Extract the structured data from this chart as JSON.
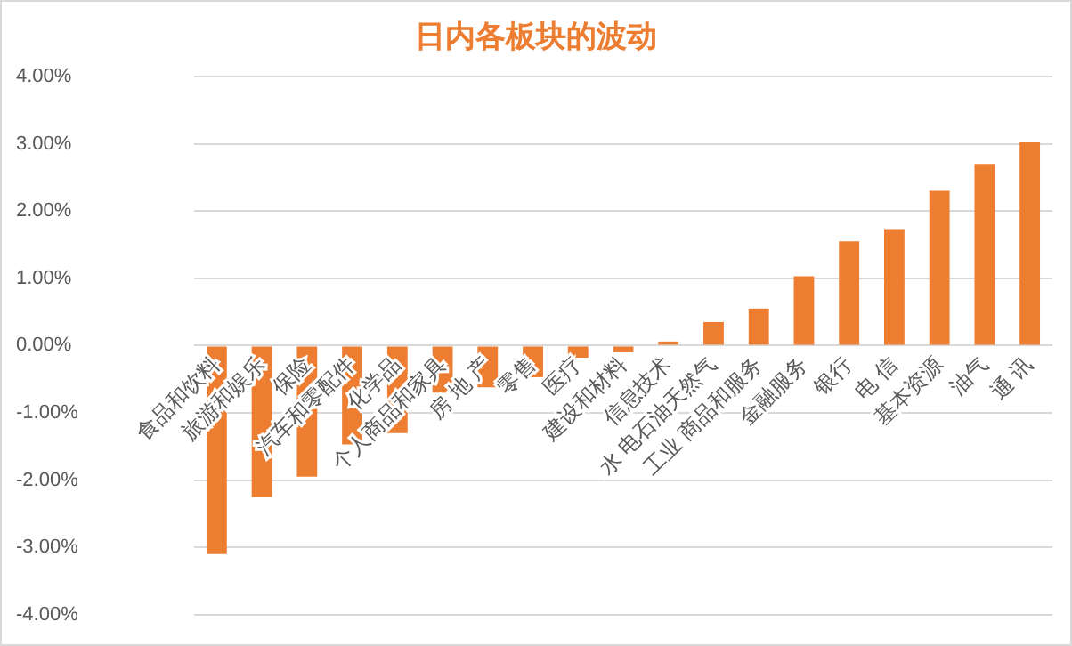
{
  "chart_data": {
    "type": "bar",
    "title": "日内各板块的波动",
    "categories": [
      "食品和饮料",
      "旅游和娱乐",
      "保险",
      "汽车和零配件",
      "化学品",
      "个人商品和家具",
      "房 地 产",
      "零售",
      "医疗",
      "建设和材料",
      "信息技术",
      "水 电石油天然气",
      "工业 商品和服务",
      "金融服务",
      "银行",
      "电 信",
      "基本资源",
      "油气",
      "通 讯"
    ],
    "values": [
      -3.1,
      -2.25,
      -1.95,
      -1.47,
      -1.3,
      -0.7,
      -0.62,
      -0.47,
      -0.18,
      -0.1,
      0.06,
      0.35,
      0.55,
      1.03,
      1.55,
      1.73,
      2.3,
      2.7,
      3.02
    ],
    "color": "#ed7d31",
    "ylim": [
      -4,
      4
    ],
    "yticks": [
      {
        "value": -4,
        "label": "-4.00%"
      },
      {
        "value": -3,
        "label": "-3.00%"
      },
      {
        "value": -2,
        "label": "-2.00%"
      },
      {
        "value": -1,
        "label": "-1.00%"
      },
      {
        "value": 0,
        "label": "0.00%"
      },
      {
        "value": 1,
        "label": "1.00%"
      },
      {
        "value": 2,
        "label": "2.00%"
      },
      {
        "value": 3,
        "label": "3.00%"
      },
      {
        "value": 4,
        "label": "4.00%"
      }
    ],
    "grid": "y"
  }
}
